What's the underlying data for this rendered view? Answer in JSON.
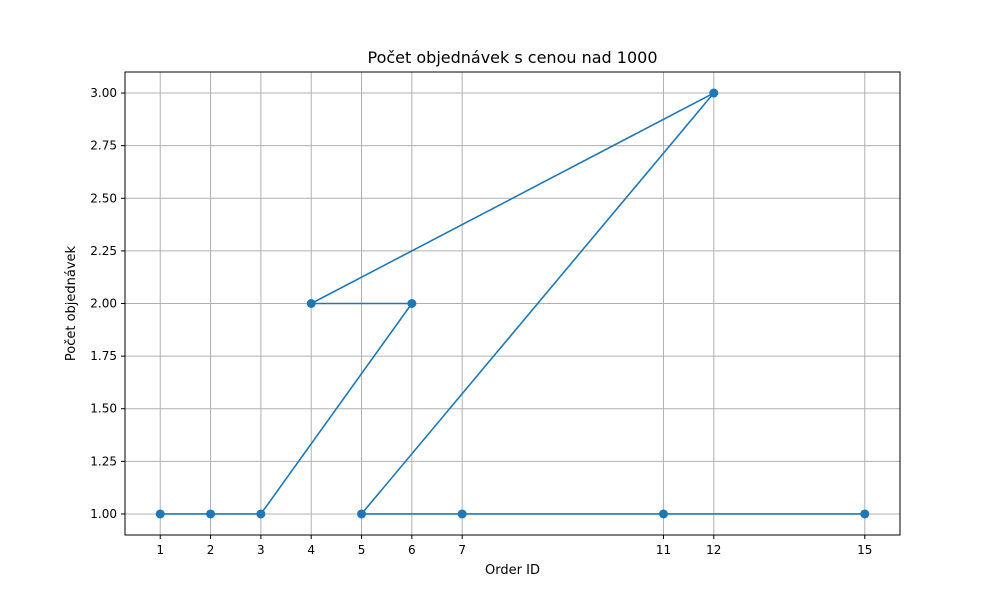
{
  "chart_data": {
    "type": "line",
    "title": "Počet objednávek s cenou nad 1000",
    "xlabel": "Order ID",
    "ylabel": "Počet objednávek",
    "x": [
      1,
      2,
      3,
      6,
      4,
      12,
      5,
      7,
      11,
      15
    ],
    "y": [
      1,
      1,
      1,
      2,
      2,
      3,
      1,
      1,
      1,
      1
    ],
    "xticks": [
      1,
      2,
      3,
      4,
      5,
      6,
      7,
      11,
      12,
      15
    ],
    "xtick_labels": [
      "1",
      "2",
      "3",
      "4",
      "5",
      "6",
      "7",
      "11",
      "12",
      "15"
    ],
    "yticks": [
      1.0,
      1.25,
      1.5,
      1.75,
      2.0,
      2.25,
      2.5,
      2.75,
      3.0
    ],
    "ytick_labels": [
      "1.00",
      "1.25",
      "1.50",
      "1.75",
      "2.00",
      "2.25",
      "2.50",
      "2.75",
      "3.00"
    ],
    "xlim": [
      0.3,
      15.7
    ],
    "ylim": [
      0.9,
      3.1
    ],
    "grid": true,
    "marker": "circle",
    "color": "#1f77b4"
  }
}
